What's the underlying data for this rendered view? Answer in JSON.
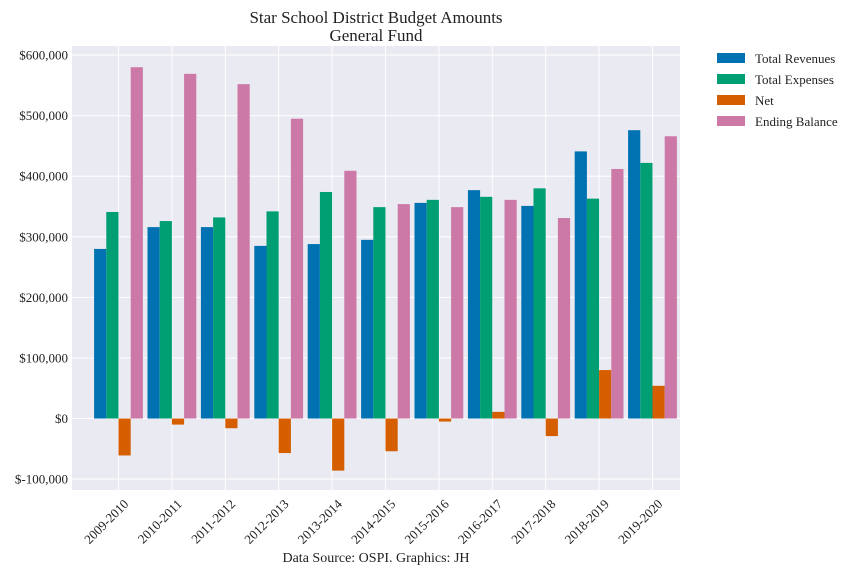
{
  "chart_data": {
    "type": "bar",
    "title": "Star School District Budget Amounts",
    "subtitle": "General Fund",
    "caption": "Data Source: OSPI. Graphics: JH",
    "categories": [
      "2009-2010",
      "2010-2011",
      "2011-2012",
      "2012-2013",
      "2013-2014",
      "2014-2015",
      "2015-2016",
      "2016-2017",
      "2017-2018",
      "2018-2019",
      "2019-2020"
    ],
    "series": [
      {
        "name": "Total Revenues",
        "color": "#0072b2",
        "values": [
          280000,
          316000,
          316000,
          285000,
          288000,
          295000,
          356000,
          377000,
          351000,
          441000,
          476000
        ]
      },
      {
        "name": "Total Expenses",
        "color": "#009e73",
        "values": [
          341000,
          326000,
          332000,
          342000,
          374000,
          349000,
          361000,
          366000,
          380000,
          363000,
          422000
        ]
      },
      {
        "name": "Net",
        "color": "#d55e00",
        "values": [
          -61000,
          -10000,
          -16000,
          -57000,
          -86000,
          -54000,
          -5000,
          11000,
          -29000,
          80000,
          54000
        ]
      },
      {
        "name": "Ending Balance",
        "color": "#cc79a7",
        "values": [
          580000,
          569000,
          552000,
          495000,
          409000,
          354000,
          349000,
          361000,
          331000,
          412000,
          466000
        ]
      }
    ],
    "yticks": [
      -100000,
      0,
      100000,
      200000,
      300000,
      400000,
      500000,
      600000
    ],
    "ytick_labels": [
      "$-100,000",
      "$0",
      "$100,000",
      "$200,000",
      "$300,000",
      "$400,000",
      "$500,000",
      "$600,000"
    ],
    "ylim": [
      -118000,
      615000
    ],
    "xlabel": "",
    "ylabel": "",
    "grid": true,
    "legend_position": "outside-top-right"
  }
}
